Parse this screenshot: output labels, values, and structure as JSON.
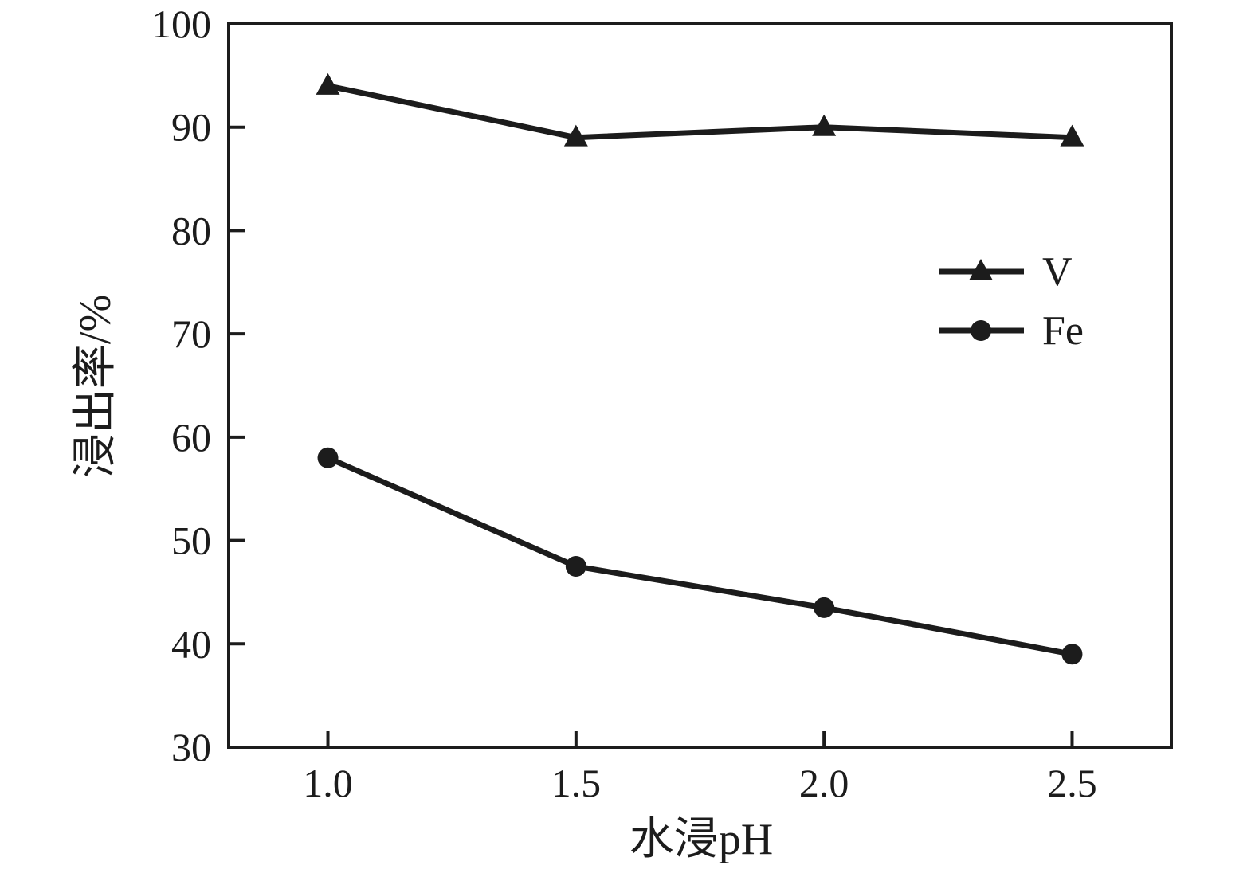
{
  "figure": {
    "background": "#ffffff",
    "ink_color": "#1c1c1c"
  },
  "chart_data": {
    "type": "line",
    "title": "",
    "xlabel": "水浸pH",
    "ylabel": "浸出率/%",
    "x": [
      1.0,
      1.5,
      2.0,
      2.5
    ],
    "xticks": [
      "1.0",
      "1.5",
      "2.0",
      "2.5"
    ],
    "yticks": [
      30,
      40,
      50,
      60,
      70,
      80,
      90,
      100
    ],
    "xlim": [
      0.8,
      2.7
    ],
    "ylim": [
      30,
      100
    ],
    "grid": false,
    "legend_position": "inside-right-upper-middle",
    "series": [
      {
        "name": "V",
        "marker": "triangle",
        "color": "#1c1c1c",
        "values": [
          94,
          89,
          90,
          89
        ]
      },
      {
        "name": "Fe",
        "marker": "circle",
        "color": "#1c1c1c",
        "values": [
          58,
          47.5,
          43.5,
          39
        ]
      }
    ]
  }
}
